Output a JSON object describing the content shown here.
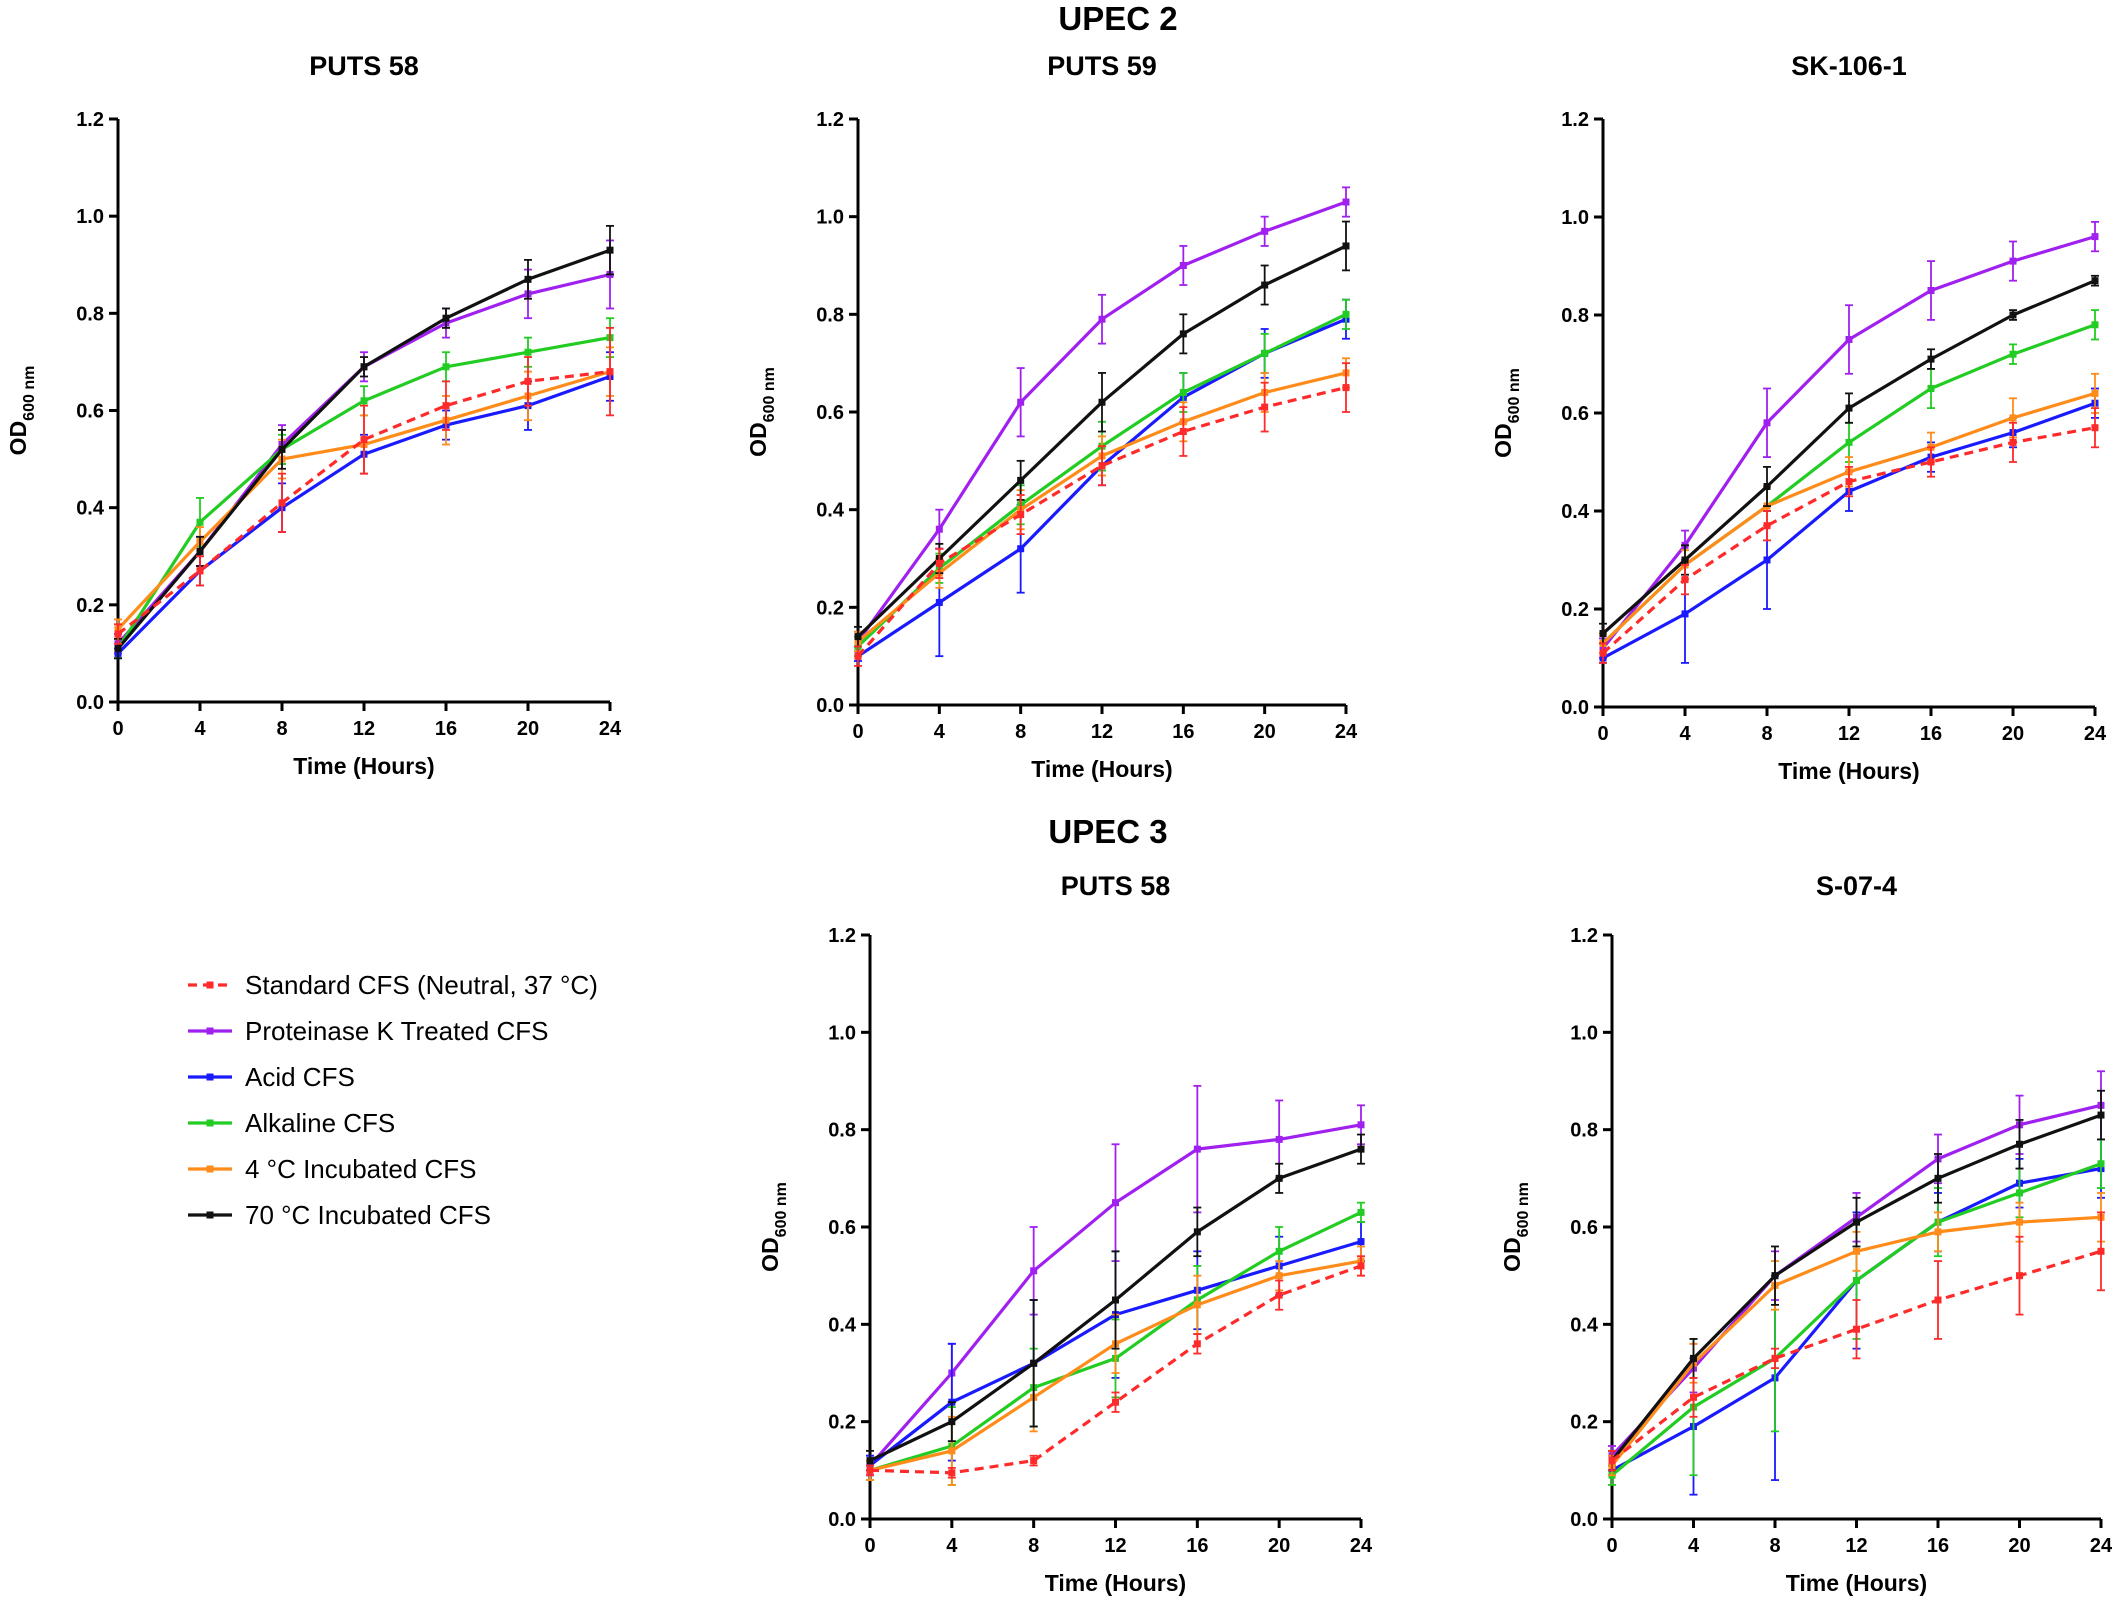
{
  "figure": {
    "group_titles": [
      {
        "label": "UPEC 2"
      },
      {
        "label": "UPEC 3"
      }
    ]
  },
  "legend": {
    "placement": "left, beside lower row",
    "items": [
      {
        "label": "Standard CFS (Neutral, 37 °C)",
        "color": "#ff2a2a",
        "dashed": true
      },
      {
        "label": "Proteinase K Treated CFS",
        "color": "#a020f0",
        "dashed": false
      },
      {
        "label": "Acid CFS",
        "color": "#1a1aff",
        "dashed": false
      },
      {
        "label": "Alkaline CFS",
        "color": "#22cc22",
        "dashed": false
      },
      {
        "label": "4 °C Incubated CFS",
        "color": "#ff8c1a",
        "dashed": false
      },
      {
        "label": "70 °C Incubated CFS",
        "color": "#111111",
        "dashed": false
      }
    ]
  },
  "chart_data": [
    {
      "type": "line",
      "group": "UPEC 2",
      "title": "PUTS 58",
      "xlabel": "Time (Hours)",
      "ylabel_main": "OD",
      "ylabel_sub": "600 nm",
      "x": [
        0,
        4,
        8,
        12,
        16,
        20,
        24
      ],
      "xlim": [
        0,
        24
      ],
      "ylim": [
        0,
        1.2
      ],
      "xticks": [
        "0",
        "4",
        "8",
        "12",
        "16",
        "20",
        "24"
      ],
      "yticks": [
        "0.0",
        "0.2",
        "0.4",
        "0.6",
        "0.8",
        "1.0",
        "1.2"
      ],
      "grid": false,
      "series": [
        {
          "name": "Standard CFS (Neutral, 37 °C)",
          "values": [
            0.14,
            0.27,
            0.41,
            0.54,
            0.61,
            0.66,
            0.68
          ],
          "errors": [
            0.02,
            0.03,
            0.06,
            0.07,
            0.05,
            0.05,
            0.09
          ]
        },
        {
          "name": "Proteinase K Treated CFS",
          "values": [
            0.12,
            0.31,
            0.53,
            0.69,
            0.78,
            0.84,
            0.88
          ],
          "errors": [
            0.02,
            0.03,
            0.04,
            0.03,
            0.03,
            0.05,
            0.07
          ]
        },
        {
          "name": "Acid CFS",
          "values": [
            0.1,
            0.27,
            0.4,
            0.51,
            0.57,
            0.61,
            0.67
          ],
          "errors": [
            0.01,
            0.03,
            0.05,
            0.04,
            0.03,
            0.05,
            0.05
          ]
        },
        {
          "name": "Alkaline CFS",
          "values": [
            0.11,
            0.37,
            0.52,
            0.62,
            0.69,
            0.72,
            0.75
          ],
          "errors": [
            0.02,
            0.05,
            0.03,
            0.03,
            0.03,
            0.03,
            0.04
          ]
        },
        {
          "name": "4 °C Incubated CFS",
          "values": [
            0.15,
            0.33,
            0.5,
            0.53,
            0.58,
            0.63,
            0.68
          ],
          "errors": [
            0.02,
            0.03,
            0.04,
            0.06,
            0.05,
            0.05,
            0.05
          ]
        },
        {
          "name": "70 °C Incubated CFS",
          "values": [
            0.11,
            0.31,
            0.52,
            0.69,
            0.79,
            0.87,
            0.93
          ],
          "errors": [
            0.02,
            0.03,
            0.04,
            0.02,
            0.02,
            0.04,
            0.05
          ]
        }
      ]
    },
    {
      "type": "line",
      "group": "UPEC 2",
      "title": "PUTS 59",
      "xlabel": "Time (Hours)",
      "ylabel_main": "OD",
      "ylabel_sub": "600 nm",
      "x": [
        0,
        4,
        8,
        12,
        16,
        20,
        24
      ],
      "xlim": [
        0,
        24
      ],
      "ylim": [
        0,
        1.2
      ],
      "xticks": [
        "0",
        "4",
        "8",
        "12",
        "16",
        "20",
        "24"
      ],
      "yticks": [
        "0.0",
        "0.2",
        "0.4",
        "0.6",
        "0.8",
        "1.0",
        "1.2"
      ],
      "grid": false,
      "series": [
        {
          "name": "Standard CFS (Neutral, 37 °C)",
          "values": [
            0.1,
            0.29,
            0.39,
            0.49,
            0.56,
            0.61,
            0.65
          ],
          "errors": [
            0.02,
            0.03,
            0.04,
            0.04,
            0.05,
            0.05,
            0.05
          ]
        },
        {
          "name": "Proteinase K Treated CFS",
          "values": [
            0.13,
            0.36,
            0.62,
            0.79,
            0.9,
            0.97,
            1.03
          ],
          "errors": [
            0.02,
            0.04,
            0.07,
            0.05,
            0.04,
            0.03,
            0.03
          ]
        },
        {
          "name": "Acid CFS",
          "values": [
            0.1,
            0.21,
            0.32,
            0.49,
            0.63,
            0.72,
            0.79
          ],
          "errors": [
            0.01,
            0.11,
            0.09,
            0.04,
            0.05,
            0.05,
            0.04
          ]
        },
        {
          "name": "Alkaline CFS",
          "values": [
            0.12,
            0.28,
            0.41,
            0.53,
            0.64,
            0.72,
            0.8
          ],
          "errors": [
            0.02,
            0.03,
            0.04,
            0.05,
            0.04,
            0.04,
            0.03
          ]
        },
        {
          "name": "4 °C Incubated CFS",
          "values": [
            0.13,
            0.27,
            0.4,
            0.51,
            0.58,
            0.64,
            0.68
          ],
          "errors": [
            0.02,
            0.03,
            0.04,
            0.04,
            0.04,
            0.04,
            0.03
          ]
        },
        {
          "name": "70 °C Incubated CFS",
          "values": [
            0.14,
            0.3,
            0.46,
            0.62,
            0.76,
            0.86,
            0.94
          ],
          "errors": [
            0.02,
            0.03,
            0.04,
            0.06,
            0.04,
            0.04,
            0.05
          ]
        }
      ]
    },
    {
      "type": "line",
      "group": "UPEC 2",
      "title": "SK-106-1",
      "xlabel": "Time (Hours)",
      "ylabel_main": "OD",
      "ylabel_sub": "600 nm",
      "x": [
        0,
        4,
        8,
        12,
        16,
        20,
        24
      ],
      "xlim": [
        0,
        24
      ],
      "ylim": [
        0,
        1.2
      ],
      "xticks": [
        "0",
        "4",
        "8",
        "12",
        "16",
        "20",
        "24"
      ],
      "yticks": [
        "0.0",
        "0.2",
        "0.4",
        "0.6",
        "0.8",
        "1.0",
        "1.2"
      ],
      "grid": false,
      "series": [
        {
          "name": "Standard CFS (Neutral, 37 °C)",
          "values": [
            0.11,
            0.26,
            0.37,
            0.46,
            0.5,
            0.54,
            0.57
          ],
          "errors": [
            0.02,
            0.03,
            0.03,
            0.03,
            0.03,
            0.04,
            0.04
          ]
        },
        {
          "name": "Proteinase K Treated CFS",
          "values": [
            0.12,
            0.33,
            0.58,
            0.75,
            0.85,
            0.91,
            0.96
          ],
          "errors": [
            0.02,
            0.03,
            0.07,
            0.07,
            0.06,
            0.04,
            0.03
          ]
        },
        {
          "name": "Acid CFS",
          "values": [
            0.1,
            0.19,
            0.3,
            0.44,
            0.51,
            0.56,
            0.62
          ],
          "errors": [
            0.01,
            0.1,
            0.1,
            0.04,
            0.03,
            0.03,
            0.03
          ]
        },
        {
          "name": "Alkaline CFS",
          "values": [
            0.13,
            0.29,
            0.41,
            0.54,
            0.65,
            0.72,
            0.78
          ],
          "errors": [
            0.02,
            0.03,
            0.04,
            0.04,
            0.04,
            0.02,
            0.03
          ]
        },
        {
          "name": "4 °C Incubated CFS",
          "values": [
            0.13,
            0.29,
            0.41,
            0.48,
            0.53,
            0.59,
            0.64
          ],
          "errors": [
            0.02,
            0.03,
            0.04,
            0.03,
            0.03,
            0.04,
            0.04
          ]
        },
        {
          "name": "70 °C Incubated CFS",
          "values": [
            0.15,
            0.3,
            0.45,
            0.61,
            0.71,
            0.8,
            0.87
          ],
          "errors": [
            0.02,
            0.03,
            0.04,
            0.03,
            0.02,
            0.01,
            0.01
          ]
        }
      ]
    },
    {
      "type": "line",
      "group": "UPEC 3",
      "title": "PUTS 58",
      "xlabel": "Time (Hours)",
      "ylabel_main": "OD",
      "ylabel_sub": "600 nm",
      "x": [
        0,
        4,
        8,
        12,
        16,
        20,
        24
      ],
      "xlim": [
        0,
        24
      ],
      "ylim": [
        0,
        1.2
      ],
      "xticks": [
        "0",
        "4",
        "8",
        "12",
        "16",
        "20",
        "24"
      ],
      "yticks": [
        "0.0",
        "0.2",
        "0.4",
        "0.6",
        "0.8",
        "1.0",
        "1.2"
      ],
      "grid": false,
      "series": [
        {
          "name": "Standard CFS (Neutral, 37 °C)",
          "values": [
            0.1,
            0.095,
            0.12,
            0.24,
            0.36,
            0.46,
            0.52
          ],
          "errors": [
            0.01,
            0.01,
            0.01,
            0.02,
            0.02,
            0.03,
            0.02
          ]
        },
        {
          "name": "Proteinase K Treated CFS",
          "values": [
            0.11,
            0.3,
            0.51,
            0.65,
            0.76,
            0.78,
            0.81
          ],
          "errors": [
            0.02,
            0.06,
            0.09,
            0.12,
            0.13,
            0.08,
            0.04
          ]
        },
        {
          "name": "Acid CFS",
          "values": [
            0.11,
            0.24,
            0.32,
            0.42,
            0.47,
            0.52,
            0.57
          ],
          "errors": [
            0.02,
            0.12,
            0.13,
            0.13,
            0.08,
            0.06,
            0.04
          ]
        },
        {
          "name": "Alkaline CFS",
          "values": [
            0.1,
            0.15,
            0.27,
            0.33,
            0.45,
            0.55,
            0.63
          ],
          "errors": [
            0.02,
            0.08,
            0.08,
            0.08,
            0.07,
            0.05,
            0.02
          ]
        },
        {
          "name": "4 °C Incubated CFS",
          "values": [
            0.1,
            0.14,
            0.25,
            0.36,
            0.44,
            0.5,
            0.53
          ],
          "errors": [
            0.02,
            0.07,
            0.07,
            0.06,
            0.06,
            0.03,
            0.03
          ]
        },
        {
          "name": "70 °C Incubated CFS",
          "values": [
            0.12,
            0.2,
            0.32,
            0.45,
            0.59,
            0.7,
            0.76
          ],
          "errors": [
            0.02,
            0.04,
            0.13,
            0.1,
            0.05,
            0.03,
            0.03
          ]
        }
      ]
    },
    {
      "type": "line",
      "group": "UPEC 3",
      "title": "S-07-4",
      "xlabel": "Time (Hours)",
      "ylabel_main": "OD",
      "ylabel_sub": "600 nm",
      "x": [
        0,
        4,
        8,
        12,
        16,
        20,
        24
      ],
      "xlim": [
        0,
        24
      ],
      "ylim": [
        0,
        1.2
      ],
      "xticks": [
        "0",
        "4",
        "8",
        "12",
        "16",
        "20",
        "24"
      ],
      "yticks": [
        "0.0",
        "0.2",
        "0.4",
        "0.6",
        "0.8",
        "1.0",
        "1.2"
      ],
      "grid": false,
      "series": [
        {
          "name": "Standard CFS (Neutral, 37 °C)",
          "values": [
            0.12,
            0.25,
            0.33,
            0.39,
            0.45,
            0.5,
            0.55
          ],
          "errors": [
            0.02,
            0.04,
            0.02,
            0.06,
            0.08,
            0.08,
            0.08
          ]
        },
        {
          "name": "Proteinase K Treated CFS",
          "values": [
            0.13,
            0.31,
            0.5,
            0.62,
            0.74,
            0.81,
            0.85
          ],
          "errors": [
            0.02,
            0.05,
            0.05,
            0.05,
            0.05,
            0.06,
            0.07
          ]
        },
        {
          "name": "Acid CFS",
          "values": [
            0.1,
            0.19,
            0.29,
            0.49,
            0.61,
            0.69,
            0.72
          ],
          "errors": [
            0.01,
            0.14,
            0.21,
            0.14,
            0.06,
            0.05,
            0.06
          ]
        },
        {
          "name": "Alkaline CFS",
          "values": [
            0.09,
            0.23,
            0.33,
            0.49,
            0.61,
            0.67,
            0.73
          ],
          "errors": [
            0.02,
            0.14,
            0.15,
            0.12,
            0.07,
            0.05,
            0.05
          ]
        },
        {
          "name": "4 °C Incubated CFS",
          "values": [
            0.11,
            0.32,
            0.48,
            0.55,
            0.59,
            0.61,
            0.62
          ],
          "errors": [
            0.02,
            0.04,
            0.05,
            0.04,
            0.04,
            0.04,
            0.05
          ]
        },
        {
          "name": "70 °C Incubated CFS",
          "values": [
            0.12,
            0.33,
            0.5,
            0.61,
            0.7,
            0.77,
            0.83
          ],
          "errors": [
            0.02,
            0.04,
            0.06,
            0.05,
            0.05,
            0.05,
            0.05
          ]
        }
      ]
    }
  ]
}
